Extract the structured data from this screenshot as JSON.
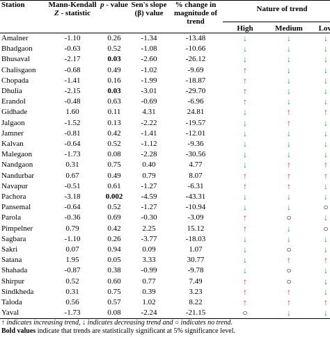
{
  "table": {
    "header": {
      "station": "Station",
      "z": [
        "Mann-Kendall ",
        "Z",
        " - statistic"
      ],
      "p": [
        "p",
        " - value"
      ],
      "slope": "Sen's slope (β) value",
      "change": "% change in magnitude of trend",
      "trend": "Nature of trend",
      "high": "High",
      "medium": "Medium",
      "low": "Low"
    },
    "rows": [
      [
        "Amalner",
        "-1.10",
        "0.26",
        "-1.34",
        "-13.48",
        "↓",
        "↓",
        "↓"
      ],
      [
        "Bhadgaon",
        "-0.63",
        "0.52",
        "-1.08",
        "-10.66",
        "↓",
        "↓",
        "↓"
      ],
      [
        "Bhusaval",
        "-2.17",
        "0.03",
        "-2.60",
        "-26.12",
        "↓",
        "↓",
        "↓"
      ],
      [
        "Chalisgaon",
        "-0.68",
        "0.49",
        "-1.02",
        "-9.69",
        "↑",
        "↓",
        "↓"
      ],
      [
        "Chopada",
        "-1.41",
        "0.16",
        "-1.99",
        "-18.87",
        "↑",
        "↓",
        "↓"
      ],
      [
        "Dhulia",
        "-2.15",
        "0.03",
        "-3.01",
        "-29.70",
        "↑",
        "↓",
        "↓"
      ],
      [
        "Erandol",
        "-0.48",
        "0.63",
        "-0.69",
        "-6.96",
        "↑",
        "↓",
        "↓"
      ],
      [
        "Gidhade",
        "1.60",
        "0.11",
        "4.31",
        "24.81",
        "↓",
        "↑",
        "↑"
      ],
      [
        "Jalgaon",
        "-1.52",
        "0.13",
        "-2.22",
        "-19.57",
        "↓",
        "↑",
        "↓"
      ],
      [
        "Jamner",
        "-0.81",
        "0.42",
        "-1.41",
        "-12.01",
        "↓",
        "↓",
        "↓"
      ],
      [
        "Kalvan",
        "-0.64",
        "0.52",
        "-1.12",
        "-9.36",
        "↓",
        "↓",
        "↓"
      ],
      [
        "Malegaon",
        "-1.73",
        "0.08",
        "-2.28",
        "-30.56",
        "↓",
        "↓",
        "↓"
      ],
      [
        "Nandgaon",
        "0.31",
        "0.75",
        "0.40",
        "4.77",
        "↓",
        "↑",
        "↑"
      ],
      [
        "Nandurbar",
        "0.67",
        "0.49",
        "0.79",
        "8.07",
        "↑",
        "↑",
        "↑"
      ],
      [
        "Navapur",
        "-0.51",
        "0.61",
        "-1.27",
        "-6.31",
        "↑",
        "↑",
        "↓"
      ],
      [
        "Pachora",
        "-3.18",
        "0.002",
        "-4.59",
        "-43.31",
        "↓",
        "↓",
        "↓"
      ],
      [
        "Pansemal",
        "-0.64",
        "0.52",
        "-1.27",
        "-10.94",
        "↓",
        "↓",
        "○"
      ],
      [
        "Parola",
        "-0.36",
        "0.69",
        "-0.30",
        "-3.09",
        "↑",
        "○",
        "↓"
      ],
      [
        "Pimpelner",
        "0.79",
        "0.42",
        "2.25",
        "15.12",
        "↑",
        "↓",
        "○"
      ],
      [
        "Sagbara",
        "-1.10",
        "0.26",
        "-3.77",
        "-18.03",
        "↓",
        "↓",
        "↓"
      ],
      [
        "Sakri",
        "0.07",
        "0.94",
        "0.09",
        "1.07",
        "↓",
        "○",
        "↓"
      ],
      [
        "Satana",
        "1.95",
        "0.05",
        "3.33",
        "30.77",
        "↓",
        "↑",
        "↑"
      ],
      [
        "Shahada",
        "-0.87",
        "0.38",
        "-0.99",
        "-9.78",
        "↓",
        "○",
        "↓"
      ],
      [
        "Shirpur",
        "0.52",
        "0.60",
        "0.77",
        "7.49",
        "↑",
        "○",
        "↓"
      ],
      [
        "Sindkheda",
        "0.31",
        "0.75",
        "0.39",
        "3.23",
        "↑",
        "↑",
        "↓"
      ],
      [
        "Taloda",
        "0.56",
        "0.57",
        "1.02",
        "8.22",
        "↑",
        "↑",
        "↑"
      ],
      [
        "Yaval",
        "-1.73",
        "0.08",
        "-2.24",
        "-21.15",
        "○",
        "↓",
        "↓"
      ]
    ],
    "bold_p_rows": [
      2,
      5,
      15
    ],
    "symbol_colors": {
      "↑": "#e02020",
      "↓": "#1a9a3a",
      "○": "#000000"
    }
  },
  "footnote": {
    "line1": [
      "↑ indicates increasing trend, ↓ indicates decreasing trend and ○ indicates no trend."
    ],
    "line2": [
      "Bold values",
      " indicate that trends are statistically significant at 5% significance level."
    ]
  }
}
